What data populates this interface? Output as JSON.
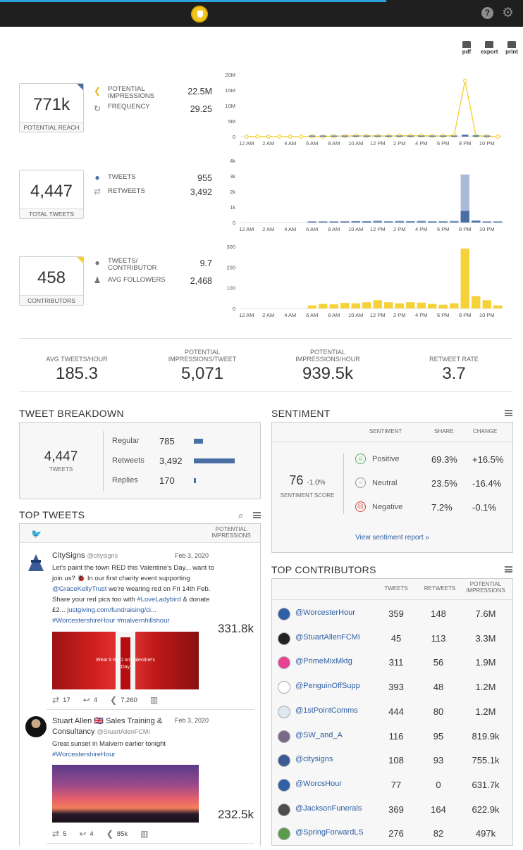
{
  "toolbar": {
    "pdf_label": "pdf",
    "export_label": "export",
    "print_label": "print"
  },
  "summary": {
    "reach": {
      "value": "771k",
      "label": "POTENTIAL REACH"
    },
    "impressions": {
      "label": "POTENTIAL IMPRESSIONS",
      "value": "22.5M"
    },
    "frequency": {
      "label": "FREQUENCY",
      "value": "29.25"
    },
    "total_tweets": {
      "value": "4,447",
      "label": "TOTAL TWEETS"
    },
    "tweets": {
      "label": "TWEETS",
      "value": "955"
    },
    "retweets": {
      "label": "RETWEETS",
      "value": "3,492"
    },
    "contributors": {
      "value": "458",
      "label": "CONTRIBUTORS"
    },
    "tweets_per_contributor": {
      "label": "TWEETS/ CONTRIBUTOR",
      "value": "9.7"
    },
    "avg_followers": {
      "label": "AVG FOLLOWERS",
      "value": "2,468"
    }
  },
  "chart_data": [
    {
      "type": "line",
      "x": [
        "12 AM",
        "1 AM",
        "2 AM",
        "3 AM",
        "4 AM",
        "5 AM",
        "6 AM",
        "7 AM",
        "8 AM",
        "9 AM",
        "10 AM",
        "11 AM",
        "12 PM",
        "1 PM",
        "2 PM",
        "3 PM",
        "4 PM",
        "5 PM",
        "6 PM",
        "7 PM",
        "8 PM",
        "9 PM",
        "10 PM",
        "11 PM"
      ],
      "xticks": [
        "12 AM",
        "2 AM",
        "4 AM",
        "6 AM",
        "8 AM",
        "10 AM",
        "12 PM",
        "2 PM",
        "4 PM",
        "6 PM",
        "8 PM",
        "10 PM"
      ],
      "yticks": [
        "0",
        "5M",
        "10M",
        "15M",
        "20M"
      ],
      "ylim": [
        0,
        20000000
      ],
      "series": [
        {
          "values": [
            0,
            0,
            0,
            0,
            0,
            0,
            80000,
            40000,
            150000,
            200000,
            300000,
            220000,
            250000,
            180000,
            300000,
            260000,
            320000,
            200000,
            240000,
            350000,
            18000000,
            300000,
            150000,
            0
          ],
          "color": "#f5d23a"
        },
        {
          "values": [
            0,
            0,
            0,
            0,
            0,
            0,
            100000,
            50000,
            120000,
            150000,
            200000,
            160000,
            300000,
            120000,
            250000,
            200000,
            300000,
            150000,
            200000,
            300000,
            600000,
            400000,
            100000,
            0
          ],
          "color": "#4a6fa5"
        }
      ]
    },
    {
      "type": "bar",
      "x": [
        "12 AM",
        "1 AM",
        "2 AM",
        "3 AM",
        "4 AM",
        "5 AM",
        "6 AM",
        "7 AM",
        "8 AM",
        "9 AM",
        "10 AM",
        "11 AM",
        "12 PM",
        "1 PM",
        "2 PM",
        "3 PM",
        "4 PM",
        "5 PM",
        "6 PM",
        "7 PM",
        "8 PM",
        "9 PM",
        "10 PM",
        "11 PM"
      ],
      "xticks": [
        "12 AM",
        "2 AM",
        "4 AM",
        "6 AM",
        "8 AM",
        "10 AM",
        "12 PM",
        "2 PM",
        "4 PM",
        "6 PM",
        "8 PM",
        "10 PM"
      ],
      "yticks": [
        "0",
        "1k",
        "2k",
        "3k",
        "4k"
      ],
      "ylim": [
        0,
        4000
      ],
      "series": [
        {
          "values": [
            0,
            0,
            0,
            0,
            0,
            0,
            20,
            30,
            30,
            40,
            50,
            40,
            60,
            40,
            50,
            40,
            60,
            40,
            40,
            60,
            750,
            100,
            30,
            10
          ],
          "color": "#4a6fa5"
        },
        {
          "values": [
            0,
            0,
            0,
            0,
            0,
            0,
            40,
            60,
            70,
            80,
            100,
            90,
            130,
            80,
            110,
            90,
            120,
            80,
            80,
            110,
            3100,
            150,
            60,
            20
          ],
          "color": "#a9bbd6"
        }
      ]
    },
    {
      "type": "bar",
      "x": [
        "12 AM",
        "1 AM",
        "2 AM",
        "3 AM",
        "4 AM",
        "5 AM",
        "6 AM",
        "7 AM",
        "8 AM",
        "9 AM",
        "10 AM",
        "11 AM",
        "12 PM",
        "1 PM",
        "2 PM",
        "3 PM",
        "4 PM",
        "5 PM",
        "6 PM",
        "7 PM",
        "8 PM",
        "9 PM",
        "10 PM",
        "11 PM"
      ],
      "xticks": [
        "12 AM",
        "2 AM",
        "4 AM",
        "6 AM",
        "8 AM",
        "10 AM",
        "12 PM",
        "2 PM",
        "4 PM",
        "6 PM",
        "8 PM",
        "10 PM"
      ],
      "yticks": [
        "0",
        "100",
        "200",
        "300"
      ],
      "ylim": [
        0,
        300
      ],
      "series": [
        {
          "values": [
            0,
            0,
            0,
            0,
            0,
            0,
            15,
            22,
            20,
            27,
            25,
            30,
            40,
            30,
            25,
            30,
            28,
            22,
            18,
            25,
            290,
            60,
            40,
            15
          ],
          "color": "#f5d23a"
        }
      ]
    }
  ],
  "kpis": [
    {
      "label": "AVG TWEETS/HOUR",
      "value": "185.3"
    },
    {
      "label": "POTENTIAL IMPRESSIONS/TWEET",
      "value": "5,071"
    },
    {
      "label": "POTENTIAL IMPRESSIONS/HOUR",
      "value": "939.5k"
    },
    {
      "label": "RETWEET RATE",
      "value": "3.7"
    }
  ],
  "breakdown": {
    "title": "TWEET BREAKDOWN",
    "total": "4,447",
    "total_label": "TWEETS",
    "rows": [
      {
        "name": "Regular",
        "count": "785",
        "share": 0.22
      },
      {
        "name": "Retweets",
        "count": "3,492",
        "share": 1.0
      },
      {
        "name": "Replies",
        "count": "170",
        "share": 0.05
      }
    ]
  },
  "sentiment": {
    "title": "SENTIMENT",
    "col_sentiment": "SENTIMENT",
    "col_share": "SHARE",
    "col_change": "CHANGE",
    "score": "76",
    "score_change": "-1.0%",
    "score_label": "SENTIMENT SCORE",
    "rows": [
      {
        "name": "Positive",
        "face": "☺",
        "share": "69.3%",
        "change": "+16.5%"
      },
      {
        "name": "Neutral",
        "face": "–",
        "share": "23.5%",
        "change": "-16.4%"
      },
      {
        "name": "Negative",
        "face": "☹",
        "share": "7.2%",
        "change": "-0.1%"
      }
    ],
    "report_link": "View sentiment report »"
  },
  "top_tweets": {
    "title": "TOP TWEETS",
    "col_impressions": "POTENTIAL IMPRESSIONS",
    "tweets": [
      {
        "name": "CitySigns",
        "handle": "@citysigns",
        "date": "Feb 3, 2020",
        "text1": "Let's paint the town RED this Valentine's Day... want to join us? 🐞 In our first charity event supporting",
        "text2": "@GraceKellyTrust",
        "text3": "we're wearing red on Fri 14th Feb. Share your red pics too with",
        "text4": "#LoveLadybird",
        "text5": "& donate £2...",
        "text6": "justgiving.com/fundraising/ci...",
        "text7": "#WorcestershireHour #malvernhillshour",
        "impressions": "331.8k",
        "image_text": "Wear it RED on Valentine's Day",
        "retweets": "17",
        "replies": "4",
        "reach": "7,260"
      },
      {
        "name": "Stuart Allen 🇬🇧 Sales Training & Consultancy",
        "handle": "@StuartAllenFCMI",
        "date": "Feb 3, 2020",
        "text1": "Great sunset in Malvern earlier tonight",
        "text2": "#WorcestershireHour",
        "impressions": "232.5k",
        "retweets": "5",
        "replies": "4",
        "reach": "85k"
      }
    ]
  },
  "top_contributors": {
    "title": "TOP CONTRIBUTORS",
    "col_tweets": "TWEETS",
    "col_retweets": "RETWEETS",
    "col_impressions": "POTENTIAL IMPRESSIONS",
    "rows": [
      {
        "handle": "@WorcesterHour",
        "tweets": "359",
        "retweets": "148",
        "impressions": "7.6M",
        "color": "#2f5fa5"
      },
      {
        "handle": "@StuartAllenFCMI",
        "tweets": "45",
        "retweets": "113",
        "impressions": "3.3M",
        "color": "#222222"
      },
      {
        "handle": "@PrimeMixMktg",
        "tweets": "311",
        "retweets": "56",
        "impressions": "1.9M",
        "color": "#e84393"
      },
      {
        "handle": "@PenguinOffSupp",
        "tweets": "393",
        "retweets": "48",
        "impressions": "1.2M",
        "color": "#ffffff"
      },
      {
        "handle": "@1stPointComms",
        "tweets": "444",
        "retweets": "80",
        "impressions": "1.2M",
        "color": "#dfe9f2"
      },
      {
        "handle": "@SW_and_A",
        "tweets": "116",
        "retweets": "95",
        "impressions": "819.9k",
        "color": "#7a6a8a"
      },
      {
        "handle": "@citysigns",
        "tweets": "108",
        "retweets": "93",
        "impressions": "755.1k",
        "color": "#3b5b96"
      },
      {
        "handle": "@WorcsHour",
        "tweets": "77",
        "retweets": "0",
        "impressions": "631.7k",
        "color": "#2f5fa5"
      },
      {
        "handle": "@JacksonFunerals",
        "tweets": "369",
        "retweets": "164",
        "impressions": "622.9k",
        "color": "#4d4d4d"
      },
      {
        "handle": "@SpringForwardLS",
        "tweets": "276",
        "retweets": "82",
        "impressions": "497k",
        "color": "#5a9a4a"
      }
    ]
  }
}
